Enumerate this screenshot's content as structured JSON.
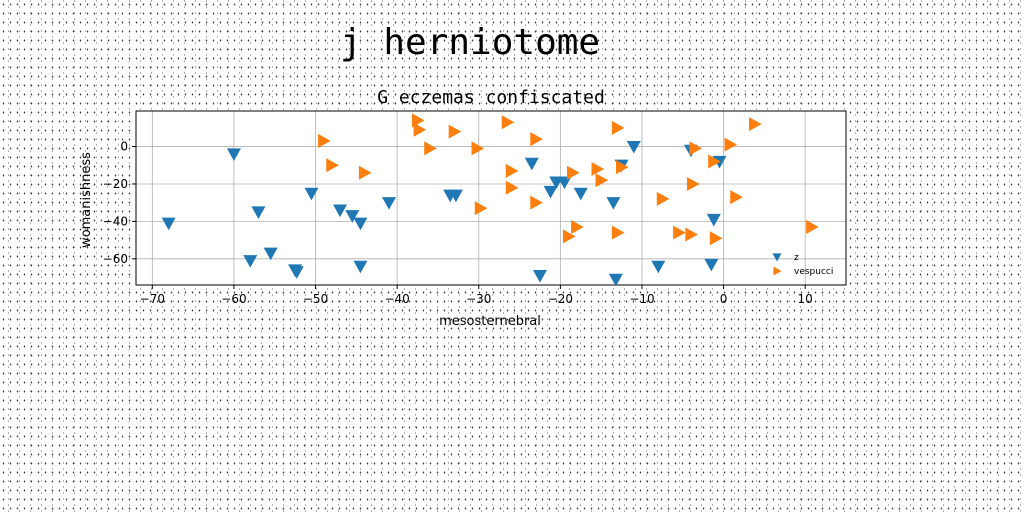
{
  "figure_title": "j herniotome",
  "chart_data": {
    "type": "scatter",
    "title": "G eczemas confiscated",
    "xlabel": "mesosternebral",
    "ylabel": "womanishness",
    "xlim": [
      -72,
      15
    ],
    "ylim": [
      -74,
      19
    ],
    "xticks": [
      -70,
      -60,
      -50,
      -40,
      -30,
      -20,
      -10,
      0,
      10
    ],
    "yticks": [
      0,
      -20,
      -40,
      -60
    ],
    "grid": true,
    "legend_position": "lower-right",
    "series": [
      {
        "name": "z",
        "marker": "triangle-down",
        "color": "#1f77b4",
        "points": [
          [
            -68,
            -41
          ],
          [
            -60,
            -4
          ],
          [
            -57,
            -35
          ],
          [
            -58,
            -61
          ],
          [
            -55.5,
            -57
          ],
          [
            -52.5,
            -66
          ],
          [
            -52.3,
            -67
          ],
          [
            -50.5,
            -25
          ],
          [
            -47,
            -34
          ],
          [
            -45.5,
            -37
          ],
          [
            -44.5,
            -41
          ],
          [
            -44.5,
            -64
          ],
          [
            -41,
            -30
          ],
          [
            -33.5,
            -26
          ],
          [
            -32.8,
            -26
          ],
          [
            -23.5,
            -9
          ],
          [
            -22.5,
            -69
          ],
          [
            -21.2,
            -24
          ],
          [
            -20.5,
            -19
          ],
          [
            -19.5,
            -19
          ],
          [
            -17.5,
            -25
          ],
          [
            -13.5,
            -30
          ],
          [
            -13.2,
            -71
          ],
          [
            -12.5,
            -10
          ],
          [
            -11,
            0
          ],
          [
            -8,
            -64
          ],
          [
            -4,
            -2
          ],
          [
            -1.5,
            -63
          ],
          [
            -1.2,
            -39
          ],
          [
            -0.5,
            -8
          ]
        ]
      },
      {
        "name": "vespucci",
        "marker": "triangle-right",
        "color": "#ff7f0e",
        "points": [
          [
            -49,
            3
          ],
          [
            -48,
            -10
          ],
          [
            -44,
            -14
          ],
          [
            -37.5,
            14
          ],
          [
            -37.3,
            9
          ],
          [
            -36,
            -1
          ],
          [
            -33,
            8
          ],
          [
            -30.2,
            -1
          ],
          [
            -29.8,
            -33
          ],
          [
            -26.5,
            13
          ],
          [
            -26,
            -13
          ],
          [
            -26,
            -22
          ],
          [
            -23,
            4
          ],
          [
            -23,
            -30
          ],
          [
            -19,
            -48
          ],
          [
            -18.5,
            -14
          ],
          [
            -18,
            -43
          ],
          [
            -15.5,
            -12
          ],
          [
            -15,
            -18
          ],
          [
            -13,
            10
          ],
          [
            -13,
            -46
          ],
          [
            -12.5,
            -11
          ],
          [
            -7.5,
            -28
          ],
          [
            -5.5,
            -46
          ],
          [
            -4,
            -47
          ],
          [
            -3.8,
            -20
          ],
          [
            -3.5,
            -1
          ],
          [
            -1.2,
            -8
          ],
          [
            -1,
            -49
          ],
          [
            0.8,
            1
          ],
          [
            1.5,
            -27
          ],
          [
            3.8,
            12
          ],
          [
            10.8,
            -43
          ]
        ]
      }
    ]
  }
}
